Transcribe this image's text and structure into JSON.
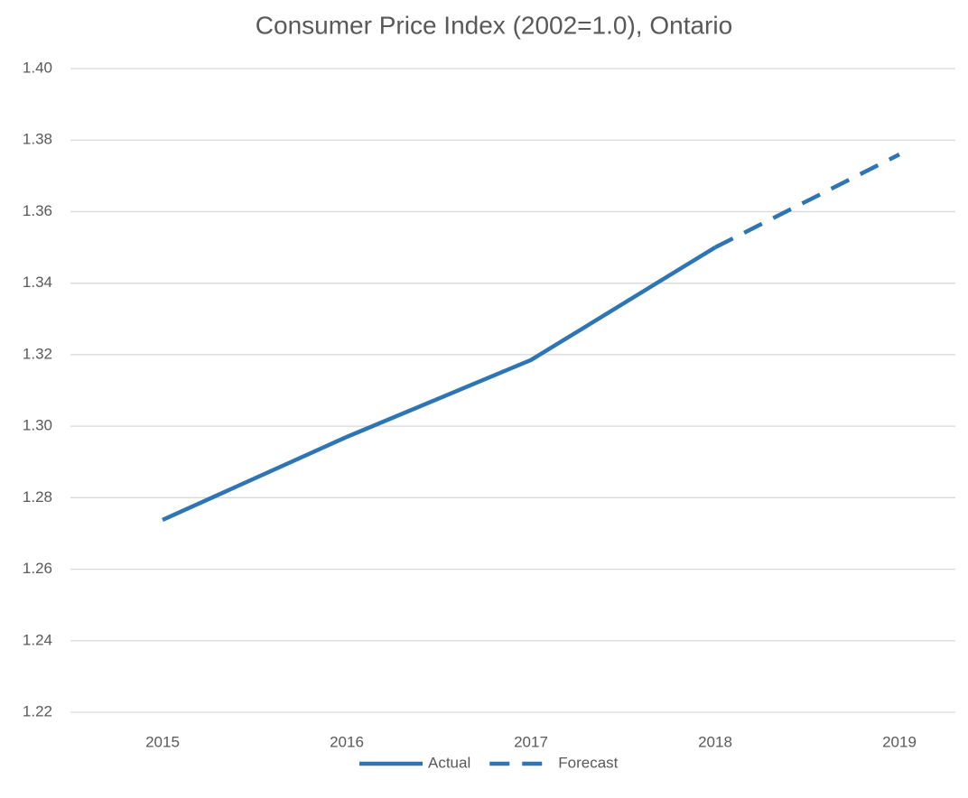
{
  "chart_data": {
    "type": "line",
    "title": "Consumer Price Index  (2002=1.0), Ontario",
    "categories": [
      "2015",
      "2016",
      "2017",
      "2018",
      "2019"
    ],
    "series": [
      {
        "name": "Actual",
        "color": "#2e75b6",
        "line_style": "solid",
        "values": [
          1.2738,
          1.297,
          1.3185,
          1.35,
          null
        ]
      },
      {
        "name": "Forecast",
        "color": "#2e75b6",
        "line_style": "dashed",
        "values": [
          null,
          null,
          null,
          1.35,
          1.376
        ]
      }
    ],
    "ylim": [
      1.22,
      1.4
    ],
    "yticks": [
      1.22,
      1.24,
      1.26,
      1.28,
      {
        "value": 1.3,
        "label": "1.30"
      },
      1.32,
      1.34,
      1.36,
      1.38,
      {
        "value": 1.4,
        "label": "1.40"
      }
    ],
    "grid": true,
    "legend": "bottom"
  }
}
